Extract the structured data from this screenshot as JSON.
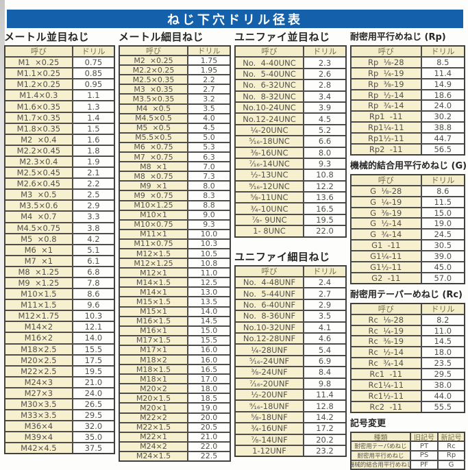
{
  "page": {
    "title": "ねじ下穴ドリル径表"
  },
  "colors": {
    "header_bg": "#1460ab",
    "header_text": "#ffffff",
    "cell_beige": "#f6f0cf",
    "cell_white": "#fdfdfb",
    "border": "#4c4c4c"
  },
  "sections": {
    "metric_coarse": {
      "title": "メートル並目ねじ",
      "head": [
        "呼び",
        "ドリル"
      ],
      "rows": [
        [
          "M1  ×0.25",
          "0.75"
        ],
        [
          "M1.1×0.25",
          "0.85"
        ],
        [
          "M1.2×0.25",
          "0.95"
        ],
        [
          "M1.4×0.3",
          "1.1"
        ],
        [
          "M1.6×0.35",
          "1.3"
        ],
        [
          "M1.7×0.35",
          "1.4"
        ],
        [
          "M1.8×0.35",
          "1.5"
        ],
        [
          "M2  ×0.4",
          "1.6"
        ],
        [
          "M2.2×0.45",
          "1.8"
        ],
        [
          "M2.3×0.4",
          "1.9"
        ],
        [
          "M2.5×0.45",
          "2.1"
        ],
        [
          "M2.6×0.45",
          "2.2"
        ],
        [
          "M3  ×0.5",
          "2.5"
        ],
        [
          "M3.5×0.6",
          "2.9"
        ],
        [
          "M4  ×0.7",
          "3.3"
        ],
        [
          "M4.5×0.75",
          "3.8"
        ],
        [
          "M5  ×0.8",
          "4.2"
        ],
        [
          "M6  ×1",
          "5.1"
        ],
        [
          "M7  ×1",
          "6.1"
        ],
        [
          "M8  ×1.25",
          "6.8"
        ],
        [
          "M9  ×1.25",
          "7.8"
        ],
        [
          "M10×1.5",
          "8.6"
        ],
        [
          "M11×1.5",
          "9.6"
        ],
        [
          "M12×1.75",
          "10.3"
        ],
        [
          "M14×2",
          "12.1"
        ],
        [
          "M16×2",
          "14.0"
        ],
        [
          "M18×2.5",
          "15.5"
        ],
        [
          "M20×2.5",
          "17.5"
        ],
        [
          "M22×2.5",
          "19.5"
        ],
        [
          "M24×3",
          "21.0"
        ],
        [
          "M27×3",
          "24.0"
        ],
        [
          "M30×3.5",
          "26.5"
        ],
        [
          "M33×3.5",
          "29.5"
        ],
        [
          "M36×4",
          "32.0"
        ],
        [
          "M39×4",
          "35.0"
        ],
        [
          "M42×4.5",
          "37.5"
        ]
      ]
    },
    "metric_fine": {
      "title": "メートル細目ねじ",
      "head": [
        "呼び",
        "ドリル"
      ],
      "rows": [
        [
          "M2  ×0.25",
          "1.75"
        ],
        [
          "M2.2×0.25",
          "1.95"
        ],
        [
          "M2.5×0.35",
          "2.2"
        ],
        [
          "M3  ×0.35",
          "2.7"
        ],
        [
          "M3.5×0.35",
          "3.2"
        ],
        [
          "M4  ×0.5",
          "3.5"
        ],
        [
          "M4.5×0.5",
          "4.0"
        ],
        [
          "M5  ×0.5",
          "4.5"
        ],
        [
          "M5.5×0.5",
          "5.0"
        ],
        [
          "M6  ×0.75",
          "5.3"
        ],
        [
          "M7  ×0.75",
          "6.3"
        ],
        [
          "M8  ×1",
          "7.0"
        ],
        [
          "M8  ×0.75",
          "7.3"
        ],
        [
          "M9  ×1",
          "8.0"
        ],
        [
          "M9  ×0.75",
          "8.3"
        ],
        [
          "M10×1.25",
          "8.8"
        ],
        [
          "M10×1",
          "9.0"
        ],
        [
          "M10×0.75",
          "9.3"
        ],
        [
          "M11×1",
          "10.0"
        ],
        [
          "M11×0.75",
          "10.3"
        ],
        [
          "M12×1.5",
          "10.5"
        ],
        [
          "M12×1.25",
          "10.8"
        ],
        [
          "M12×1",
          "11.0"
        ],
        [
          "M14×1.5",
          "12.5"
        ],
        [
          "M14×1",
          "13.0"
        ],
        [
          "M15×1.5",
          "13.5"
        ],
        [
          "M15×1",
          "14.0"
        ],
        [
          "M16×1.5",
          "14.5"
        ],
        [
          "M16×1",
          "15.0"
        ],
        [
          "M17×1.5",
          "15.5"
        ],
        [
          "M17×1",
          "16.0"
        ],
        [
          "M18×2",
          "16.0"
        ],
        [
          "M18×1.5",
          "16.5"
        ],
        [
          "M18×1",
          "17.0"
        ],
        [
          "M20×2",
          "18.0"
        ],
        [
          "M20×1.5",
          "18.5"
        ],
        [
          "M20×1",
          "19.0"
        ],
        [
          "M22×2",
          "20.0"
        ],
        [
          "M22×1.5",
          "20.5"
        ],
        [
          "M22×1",
          "21.0"
        ],
        [
          "M24×2",
          "22.0"
        ],
        [
          "M24×1.5",
          "22.5"
        ]
      ]
    },
    "unified_coarse": {
      "title": "ユニファイ並目ねじ",
      "head": [
        "呼び",
        "ドリル"
      ],
      "rows": [
        [
          "No.  4-40UNC",
          "2.3"
        ],
        [
          "No.  5-40UNC",
          "2.6"
        ],
        [
          "No.  6-32UNC",
          "2.8"
        ],
        [
          "No.  8-32UNC",
          "3.4"
        ],
        [
          "No.10-24UNC",
          "3.9"
        ],
        [
          "No.12-24UNC",
          "4.5"
        ],
        [
          "¼-20UNC",
          "5.2"
        ],
        [
          "⁵⁄₁₆-18UNC",
          "6.6"
        ],
        [
          "⅜-16UNC",
          "8.0"
        ],
        [
          "⁷⁄₁₆-14UNC",
          "9.3"
        ],
        [
          "½-13UNC",
          "10.8"
        ],
        [
          "⁹⁄₁₆-12UNC",
          "12.2"
        ],
        [
          "⅝-11UNC",
          "13.6"
        ],
        [
          "¾-10UNC",
          "16.5"
        ],
        [
          "⅞- 9UNC",
          "19.5"
        ],
        [
          "1- 8UNC",
          "22.0"
        ]
      ]
    },
    "unified_fine": {
      "title": "ユニファイ細目ねじ",
      "head": [
        "呼び",
        "ドリル"
      ],
      "rows": [
        [
          "No.  4-48UNF",
          "2.4"
        ],
        [
          "No.  5-44UNF",
          "2.7"
        ],
        [
          "No.  6-40UNF",
          "2.9"
        ],
        [
          "No.  8-36UNF",
          "3.5"
        ],
        [
          "No.10-32UNF",
          "4.1"
        ],
        [
          "No.12-28UNF",
          "4.6"
        ],
        [
          "¼-28UNF",
          "5.4"
        ],
        [
          "⁵⁄₁₆-24UNF",
          "6.9"
        ],
        [
          "⅜-24UNF",
          "8.4"
        ],
        [
          "⁷⁄₁₆-20UNF",
          "9.8"
        ],
        [
          "½-20UNF",
          "11.4"
        ],
        [
          "⁹⁄₁₆-18UNF",
          "12.8"
        ],
        [
          "⅝-18UNF",
          "14.2"
        ],
        [
          "¾-16UNF",
          "17.2"
        ],
        [
          "⅞-14UNF",
          "20.2"
        ],
        [
          "1-12UNF",
          "23.2"
        ]
      ]
    },
    "rp": {
      "title": "耐密用平行めねじ (Rp)",
      "head": [
        "呼び",
        "ドリル"
      ],
      "rows": [
        [
          "Rp  ⅛-28",
          "8.5"
        ],
        [
          "Rp  ¼-19",
          "11.4"
        ],
        [
          "Rp  ⅜-19",
          "14.9"
        ],
        [
          "Rp  ½-14",
          "18.6"
        ],
        [
          "Rp  ¾-14",
          "24.0"
        ],
        [
          "Rp1  -11",
          "30.2"
        ],
        [
          "Rp1¼-11",
          "38.8"
        ],
        [
          "Rp1½-11",
          "44.7"
        ],
        [
          "Rp2  -11",
          "56.5"
        ]
      ]
    },
    "g": {
      "title": "機械的結合用平行めねじ (G)",
      "head": [
        "呼び",
        "ドリル"
      ],
      "rows": [
        [
          "G  ⅛-28",
          "8.6"
        ],
        [
          "G  ¼-19",
          "11.5"
        ],
        [
          "G  ⅜-19",
          "15.0"
        ],
        [
          "G  ½-14",
          "19.0"
        ],
        [
          "G  ¾-14",
          "24.5"
        ],
        [
          "G1  -11",
          "30.5"
        ],
        [
          "G1¼-11",
          "39.0"
        ],
        [
          "G1½-11",
          "45.0"
        ],
        [
          "G2  -11",
          "57.0"
        ]
      ]
    },
    "rc": {
      "title": "耐密用テーパーめねじ (Rc)",
      "head": [
        "呼び",
        "ドリル"
      ],
      "rows": [
        [
          "Rc  ⅛-28",
          "8.2"
        ],
        [
          "Rc  ¼-19",
          "11.0"
        ],
        [
          "Rc  ⅜-19",
          "14.5"
        ],
        [
          "Rc  ½-14",
          "18.0"
        ],
        [
          "Rc  ¾-14",
          "23.5"
        ],
        [
          "Rc1  -11",
          "29.5"
        ],
        [
          "Rc1¼-11",
          "38.0"
        ],
        [
          "Rc1½-11",
          "44.0"
        ],
        [
          "Rc2  -11",
          "55.5"
        ]
      ]
    },
    "symbol_change": {
      "title": "記号変更",
      "head": [
        "種類",
        "旧記号",
        "新記号"
      ],
      "rows": [
        [
          "耐密用テーパめねじ",
          "PT",
          "Rc"
        ],
        [
          "耐密用平行めねじ",
          "PS",
          "Rp"
        ],
        [
          "機械的結合用平行めねじ",
          "PF",
          "G"
        ]
      ]
    }
  }
}
